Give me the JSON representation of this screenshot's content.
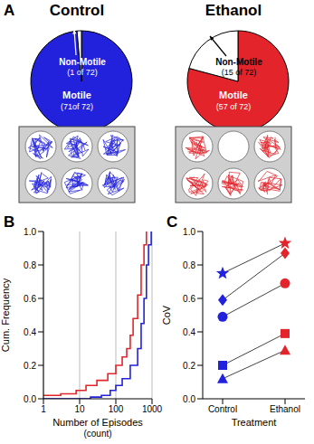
{
  "panel_labels": [
    "A",
    "B",
    "C"
  ],
  "chart_data": [
    {
      "type": "pie",
      "title": "Control",
      "categories": [
        "Motile",
        "Non-Motile"
      ],
      "values": [
        71,
        1
      ],
      "value_labels": [
        "(71of 72)",
        "(1 of 72)"
      ],
      "colors": [
        "#2222dd",
        "#ffffff"
      ],
      "data_labels": true
    },
    {
      "type": "pie",
      "title": "Ethanol",
      "categories": [
        "Motile",
        "Non-Motile"
      ],
      "values": [
        57,
        15
      ],
      "value_labels": [
        "(57 of 72)",
        "(15 of 72)"
      ],
      "colors": [
        "#e3242b",
        "#ffffff"
      ],
      "data_labels": true
    },
    {
      "type": "line",
      "x_label": "Number of Episodes\n(count)",
      "y_label": "Cum. Frequency",
      "log": "x",
      "grid": true,
      "xlim": [
        1,
        1000
      ],
      "xticks": [
        1,
        10,
        100,
        1000
      ],
      "ylim": [
        0,
        1
      ],
      "yticks": [
        {
          "value": 0,
          "label": "0.0"
        },
        0.2,
        0.4,
        0.6,
        0.8,
        {
          "value": 1,
          "label": "1.0"
        }
      ],
      "series": [
        {
          "color": "#e3242b",
          "line_style": "step",
          "x": [
            1,
            3,
            8,
            15,
            30,
            60,
            100,
            150,
            200,
            250,
            300,
            400,
            500,
            600,
            700
          ],
          "values": [
            0.02,
            0.03,
            0.05,
            0.08,
            0.11,
            0.15,
            0.2,
            0.25,
            0.3,
            0.38,
            0.48,
            0.62,
            0.8,
            0.92,
            1.0
          ]
        },
        {
          "color": "#2222dd",
          "line_style": "step",
          "x": [
            1,
            20,
            40,
            70,
            100,
            150,
            250,
            400,
            500,
            600,
            700,
            800,
            950
          ],
          "values": [
            0.0,
            0.01,
            0.02,
            0.05,
            0.08,
            0.12,
            0.2,
            0.3,
            0.45,
            0.6,
            0.8,
            0.92,
            1.0
          ]
        }
      ]
    },
    {
      "type": "line",
      "x_label": "Treatment",
      "y_label": "CoV",
      "categories": [
        "Control",
        "Ethanol"
      ],
      "ylim": [
        0,
        1
      ],
      "yticks": [
        {
          "value": 0,
          "label": "0.0"
        },
        0.2,
        0.4,
        0.6,
        0.8,
        {
          "value": 1,
          "label": "1.0"
        }
      ],
      "series": [
        {
          "marker": "star",
          "colors": [
            "#2222dd",
            "#e3242b"
          ],
          "values": [
            0.75,
            0.93
          ]
        },
        {
          "marker": "diamond",
          "colors": [
            "#2222dd",
            "#e3242b"
          ],
          "values": [
            0.59,
            0.87
          ]
        },
        {
          "marker": "circle",
          "colors": [
            "#2222dd",
            "#e3242b"
          ],
          "values": [
            0.49,
            0.69
          ]
        },
        {
          "marker": "square",
          "colors": [
            "#2222dd",
            "#e3242b"
          ],
          "values": [
            0.2,
            0.39
          ]
        },
        {
          "marker": "triangle",
          "colors": [
            "#2222dd",
            "#e3242b"
          ],
          "values": [
            0.12,
            0.29
          ]
        }
      ]
    }
  ],
  "well_plates": [
    [
      true,
      true,
      true,
      true,
      true,
      true
    ],
    [
      true,
      false,
      true,
      true,
      true,
      true
    ]
  ]
}
